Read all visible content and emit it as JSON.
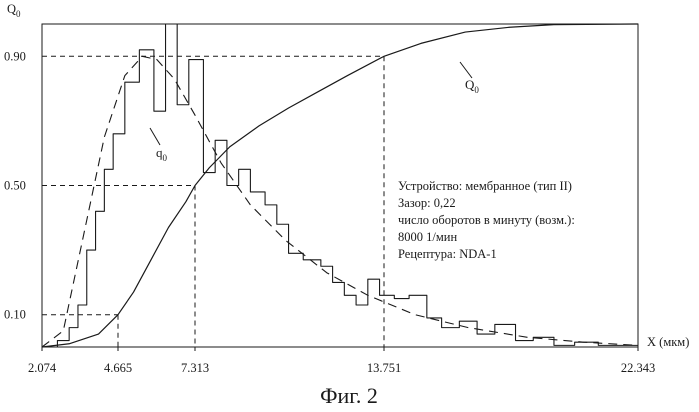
{
  "chart_data": {
    "type": "line",
    "x_label": "X (мкм)",
    "y_label": "Q",
    "y_label_sub": "0",
    "x_ticks": [
      "2.074",
      "4.665",
      "7.313",
      "13.751",
      "22.343"
    ],
    "y_ticks": [
      "0.90",
      "0.50",
      "0.10"
    ],
    "series": [
      {
        "name": "Q",
        "name_sub": "0",
        "style": "solid-smooth",
        "points": [
          [
            2.074,
            0.0
          ],
          [
            3.0,
            0.01
          ],
          [
            4.0,
            0.04
          ],
          [
            4.665,
            0.1
          ],
          [
            5.2,
            0.17
          ],
          [
            5.8,
            0.27
          ],
          [
            6.4,
            0.37
          ],
          [
            7.0,
            0.45
          ],
          [
            7.313,
            0.5
          ],
          [
            7.8,
            0.555
          ],
          [
            8.5,
            0.62
          ],
          [
            9.5,
            0.685
          ],
          [
            10.5,
            0.74
          ],
          [
            11.5,
            0.79
          ],
          [
            12.5,
            0.84
          ],
          [
            13.751,
            0.9
          ],
          [
            15.0,
            0.94
          ],
          [
            16.5,
            0.975
          ],
          [
            18.0,
            0.99
          ],
          [
            19.5,
            0.998
          ],
          [
            22.343,
            1.0
          ]
        ]
      },
      {
        "name": "q",
        "name_sub": "0",
        "style": "step-histogram",
        "points": [
          [
            2.074,
            0.0
          ],
          [
            2.6,
            0.02
          ],
          [
            3.0,
            0.06
          ],
          [
            3.3,
            0.13
          ],
          [
            3.6,
            0.3
          ],
          [
            3.9,
            0.42
          ],
          [
            4.2,
            0.55
          ],
          [
            4.5,
            0.66
          ],
          [
            4.9,
            0.82
          ],
          [
            5.4,
            0.92
          ],
          [
            5.9,
            0.73
          ],
          [
            6.3,
            1.0
          ],
          [
            6.7,
            0.75
          ],
          [
            7.1,
            0.89
          ],
          [
            7.6,
            0.54
          ],
          [
            8.0,
            0.64
          ],
          [
            8.4,
            0.5
          ],
          [
            8.8,
            0.55
          ],
          [
            9.2,
            0.48
          ],
          [
            9.7,
            0.44
          ],
          [
            10.1,
            0.38
          ],
          [
            10.5,
            0.29
          ],
          [
            11.0,
            0.27
          ],
          [
            11.6,
            0.25
          ],
          [
            12.0,
            0.2
          ],
          [
            12.4,
            0.16
          ],
          [
            12.8,
            0.13
          ],
          [
            13.2,
            0.21
          ],
          [
            13.6,
            0.16
          ],
          [
            14.1,
            0.15
          ],
          [
            14.6,
            0.16
          ],
          [
            15.2,
            0.09
          ],
          [
            15.7,
            0.06
          ],
          [
            16.3,
            0.08
          ],
          [
            16.9,
            0.04
          ],
          [
            17.5,
            0.07
          ],
          [
            18.2,
            0.02
          ],
          [
            18.8,
            0.03
          ],
          [
            19.5,
            0.005
          ],
          [
            20.2,
            0.015
          ],
          [
            21.0,
            0.005
          ],
          [
            22.343,
            0.005
          ]
        ]
      },
      {
        "name": "",
        "style": "dashed-smooth",
        "points": [
          [
            2.074,
            0.0
          ],
          [
            2.8,
            0.05
          ],
          [
            3.5,
            0.35
          ],
          [
            4.2,
            0.65
          ],
          [
            4.9,
            0.84
          ],
          [
            5.5,
            0.9
          ],
          [
            6.0,
            0.89
          ],
          [
            6.6,
            0.83
          ],
          [
            7.3,
            0.72
          ],
          [
            8.2,
            0.57
          ],
          [
            9.2,
            0.44
          ],
          [
            10.4,
            0.33
          ],
          [
            11.8,
            0.23
          ],
          [
            13.2,
            0.16
          ],
          [
            14.8,
            0.1
          ],
          [
            16.6,
            0.06
          ],
          [
            18.6,
            0.03
          ],
          [
            20.5,
            0.015
          ],
          [
            22.343,
            0.005
          ]
        ]
      }
    ],
    "guide_lines": [
      {
        "x": 4.665,
        "y": 0.1
      },
      {
        "x": 7.313,
        "y": 0.5
      },
      {
        "x": 13.751,
        "y": 0.9
      }
    ],
    "annotation_lines": [
      "Устройство: мембранное (тип II)",
      "Зазор: 0,22",
      "число оборотов в минуту (возм.):",
      "8000 1/мин",
      "Рецептура: NDA-1"
    ],
    "grid": false,
    "caption": "Фиг. 2"
  }
}
